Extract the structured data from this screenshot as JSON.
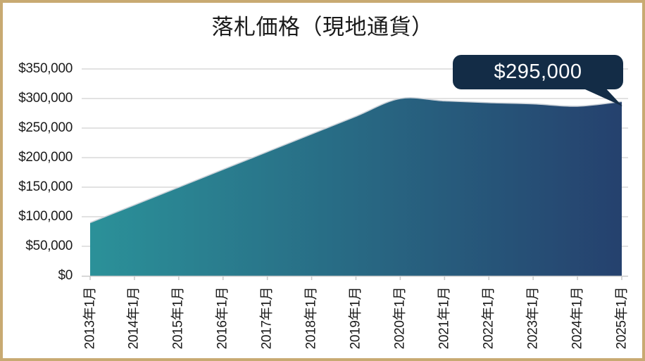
{
  "page": {
    "background": "#FFFFFF",
    "border_color": "#C8AA72"
  },
  "chart_data": {
    "type": "area",
    "title": "落札価格（現地通貨）",
    "x_labels": [
      "2013年1月",
      "2014年1月",
      "2015年1月",
      "2016年1月",
      "2017年1月",
      "2018年1月",
      "2019年1月",
      "2020年1月",
      "2021年1月",
      "2022年1月",
      "2023年1月",
      "2024年1月",
      "2025年1月"
    ],
    "values": [
      90000,
      120000,
      150000,
      180000,
      210000,
      240000,
      270000,
      300000,
      296000,
      293000,
      291000,
      287000,
      295000
    ],
    "ylim": [
      0,
      350000
    ],
    "y_ticks": [
      0,
      50000,
      100000,
      150000,
      200000,
      250000,
      300000,
      350000
    ],
    "y_tick_labels": [
      "$0",
      "$50,000",
      "$100,000",
      "$150,000",
      "$200,000",
      "$250,000",
      "$300,000",
      "$350,000"
    ],
    "grid": true,
    "legend": "none",
    "callout": {
      "label": "$295,000",
      "value": 295000,
      "points_to": "2025年1月"
    },
    "colors": {
      "gradient_start": "#2B9199",
      "gradient_end": "#25416E",
      "top_edge": "#CBD2D9",
      "grid": "#D9D9D9",
      "axis": "#C9C9C9",
      "callout_bg": "#132C46",
      "callout_text": "#FFFFFF",
      "text": "#1A1A1A"
    }
  }
}
